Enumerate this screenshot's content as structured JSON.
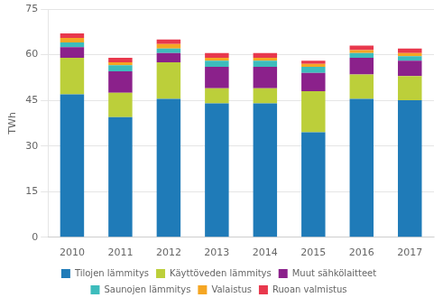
{
  "chart_data": {
    "type": "bar",
    "stacked": true,
    "categories": [
      "2010",
      "2011",
      "2012",
      "2013",
      "2014",
      "2015",
      "2016",
      "2017"
    ],
    "series": [
      {
        "name": "Tilojen lämmitys",
        "color": "#1F7BB8",
        "values": [
          47.0,
          39.5,
          45.5,
          44.0,
          44.0,
          34.5,
          45.5,
          45.0
        ]
      },
      {
        "name": "Käyttöveden lämmitys",
        "color": "#BCCF3A",
        "values": [
          12.0,
          8.0,
          12.0,
          5.0,
          5.0,
          13.5,
          8.0,
          8.0
        ]
      },
      {
        "name": "Muut sähkölaitteet",
        "color": "#8B218B",
        "values": [
          3.5,
          7.0,
          3.0,
          7.0,
          7.0,
          6.0,
          5.5,
          5.0
        ]
      },
      {
        "name": "Saunojen lämmitys",
        "color": "#3DBCBC",
        "values": [
          1.5,
          2.0,
          1.5,
          2.0,
          2.0,
          2.0,
          1.5,
          1.5
        ]
      },
      {
        "name": "Valaistus",
        "color": "#F5A623",
        "values": [
          1.5,
          1.0,
          1.5,
          1.0,
          1.0,
          1.0,
          1.0,
          1.0
        ]
      },
      {
        "name": "Ruoan valmistus",
        "color": "#E8384D",
        "values": [
          1.5,
          1.5,
          1.5,
          1.5,
          1.5,
          1.0,
          1.5,
          1.5
        ]
      }
    ],
    "ylabel": "TWh",
    "ylim": [
      0,
      75
    ],
    "yticks": [
      0,
      15,
      30,
      45,
      60,
      75
    ],
    "grid": true,
    "legend": "bottom"
  }
}
